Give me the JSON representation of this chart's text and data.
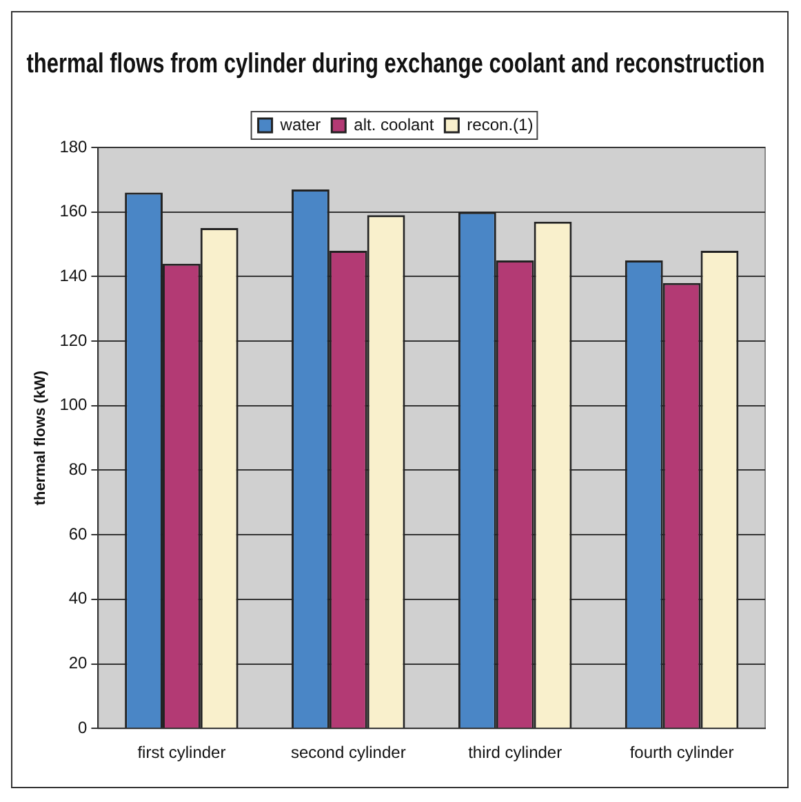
{
  "chart_data": {
    "type": "bar",
    "title": "thermal flows from cylinder during exchange coolant and reconstruction",
    "ylabel": "thermal flows (kW)",
    "categories": [
      "first cylinder",
      "second cylinder",
      "third cylinder",
      "fourth cylinder"
    ],
    "series": [
      {
        "name": "water",
        "color": "#4a86c6",
        "values": [
          166,
          167,
          160,
          145
        ]
      },
      {
        "name": "alt. coolant",
        "color": "#b33a74",
        "values": [
          144,
          148,
          145,
          138
        ]
      },
      {
        "name": "recon.(1)",
        "color": "#f9f0cc",
        "values": [
          155,
          159,
          157,
          148
        ]
      }
    ],
    "ylim": [
      0,
      180
    ],
    "yticks": [
      0,
      20,
      40,
      60,
      80,
      100,
      120,
      140,
      160,
      180
    ],
    "grid": "y",
    "legend": "top"
  }
}
